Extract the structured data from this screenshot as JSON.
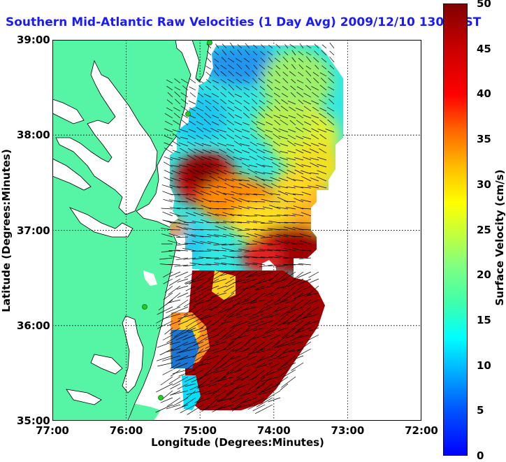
{
  "title": "Southern Mid-Atlantic Raw Velocities (1 Day Avg) 2009/12/10 1300 EST",
  "map": {
    "lon_range": [
      -77,
      -72
    ],
    "lat_range": [
      35,
      39
    ],
    "x_ticks": [
      "77:00",
      "76:00",
      "75:00",
      "74:00",
      "73:00",
      "72:00"
    ],
    "y_ticks": [
      "39:00",
      "38:00",
      "37:00",
      "36:00",
      "35:00"
    ],
    "xlabel": "Longitude (Degrees:Minutes)",
    "ylabel": "Latitude (Degrees:Minutes)",
    "grid": true,
    "land_color": "#55f5a5",
    "vector_color": "#000000",
    "station_color": "#22cc22"
  },
  "colorbar": {
    "label": "Surface Velocity (cm/s)",
    "min": 0,
    "max": 50,
    "ticks": [
      "50",
      "45",
      "40",
      "35",
      "30",
      "25",
      "20",
      "15",
      "10",
      "5",
      "0"
    ]
  }
}
